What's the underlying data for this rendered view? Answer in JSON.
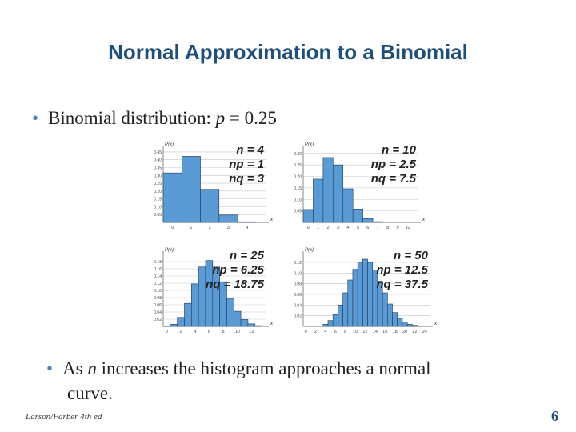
{
  "slide": {
    "title": "Normal Approximation to a Binomial",
    "bullet1": {
      "prefix": "Binomial distribution:  ",
      "var": "p",
      "suffix": " = 0.25"
    },
    "bullet2": {
      "line1_pre": "As ",
      "line1_var": "n",
      "line1_post": " increases the histogram approaches a normal",
      "line2": "curve."
    },
    "footer": "Larson/Farber 4th ed",
    "page_number": "6"
  },
  "colors": {
    "bar": "#5b9bd5",
    "bar_edge": "#1f3a5a",
    "title": "#1f4e79",
    "bullet": "#4f81bd"
  },
  "chart_data": [
    {
      "type": "bar",
      "ylabel": "P(x)",
      "xlabel": "x",
      "labels": [
        "n = 4",
        "np = 1",
        "nq = 3"
      ],
      "yticks": [
        "0.45",
        "0.40",
        "0.35",
        "0.30",
        "0.25",
        "0.20",
        "0.15",
        "0.10",
        "0.05"
      ],
      "ylim": [
        0,
        0.47
      ],
      "xticks": [
        "0",
        "1",
        "2",
        "3",
        "4"
      ],
      "x": [
        0,
        1,
        2,
        3,
        4
      ],
      "values": [
        0.316,
        0.422,
        0.211,
        0.047,
        0.004
      ]
    },
    {
      "type": "bar",
      "ylabel": "P(x)",
      "xlabel": "x",
      "labels": [
        "n = 10",
        "np = 2.5",
        "nq = 7.5"
      ],
      "yticks": [
        "0.30",
        "0.25",
        "0.20",
        "0.15",
        "0.10",
        "0.05"
      ],
      "ylim": [
        0,
        0.32
      ],
      "xticks": [
        "0",
        "1",
        "2",
        "3",
        "4",
        "5",
        "6",
        "7",
        "8",
        "9",
        "10"
      ],
      "x": [
        0,
        1,
        2,
        3,
        4,
        5,
        6,
        7,
        8,
        9,
        10
      ],
      "values": [
        0.056,
        0.188,
        0.282,
        0.25,
        0.146,
        0.058,
        0.016,
        0.003,
        0.0,
        0.0,
        0.0
      ]
    },
    {
      "type": "bar",
      "ylabel": "P(x)",
      "xlabel": "x",
      "labels": [
        "n = 25",
        "np = 6.25",
        "nq = 18.75"
      ],
      "yticks": [
        "0.18",
        "0.16",
        "0.14",
        "0.12",
        "0.10",
        "0.08",
        "0.06",
        "0.04",
        "0.02"
      ],
      "ylim": [
        0,
        0.2
      ],
      "xticks": [
        "0",
        "2",
        "4",
        "6",
        "8",
        "10",
        "12"
      ],
      "x": [
        0,
        1,
        2,
        3,
        4,
        5,
        6,
        7,
        8,
        9,
        10,
        11,
        12,
        13
      ],
      "values": [
        0.001,
        0.006,
        0.025,
        0.064,
        0.118,
        0.165,
        0.183,
        0.165,
        0.124,
        0.078,
        0.042,
        0.019,
        0.007,
        0.002
      ]
    },
    {
      "type": "bar",
      "ylabel": "P(x)",
      "xlabel": "x",
      "labels": [
        "n = 50",
        "np = 12.5",
        "nq = 37.5"
      ],
      "yticks": [
        "0.12",
        "0.10",
        "0.08",
        "0.06",
        "0.04",
        "0.02"
      ],
      "ylim": [
        0,
        0.135
      ],
      "xticks": [
        "0",
        "2",
        "4",
        "6",
        "8",
        "10",
        "12",
        "14",
        "16",
        "18",
        "20",
        "22",
        "24"
      ],
      "x": [
        4,
        5,
        6,
        7,
        8,
        9,
        10,
        11,
        12,
        13,
        14,
        15,
        16,
        17,
        18,
        19,
        20,
        21,
        22,
        23
      ],
      "values": [
        0.004,
        0.011,
        0.022,
        0.04,
        0.063,
        0.087,
        0.107,
        0.119,
        0.126,
        0.12,
        0.106,
        0.085,
        0.063,
        0.042,
        0.026,
        0.015,
        0.008,
        0.004,
        0.002,
        0.001
      ]
    }
  ]
}
